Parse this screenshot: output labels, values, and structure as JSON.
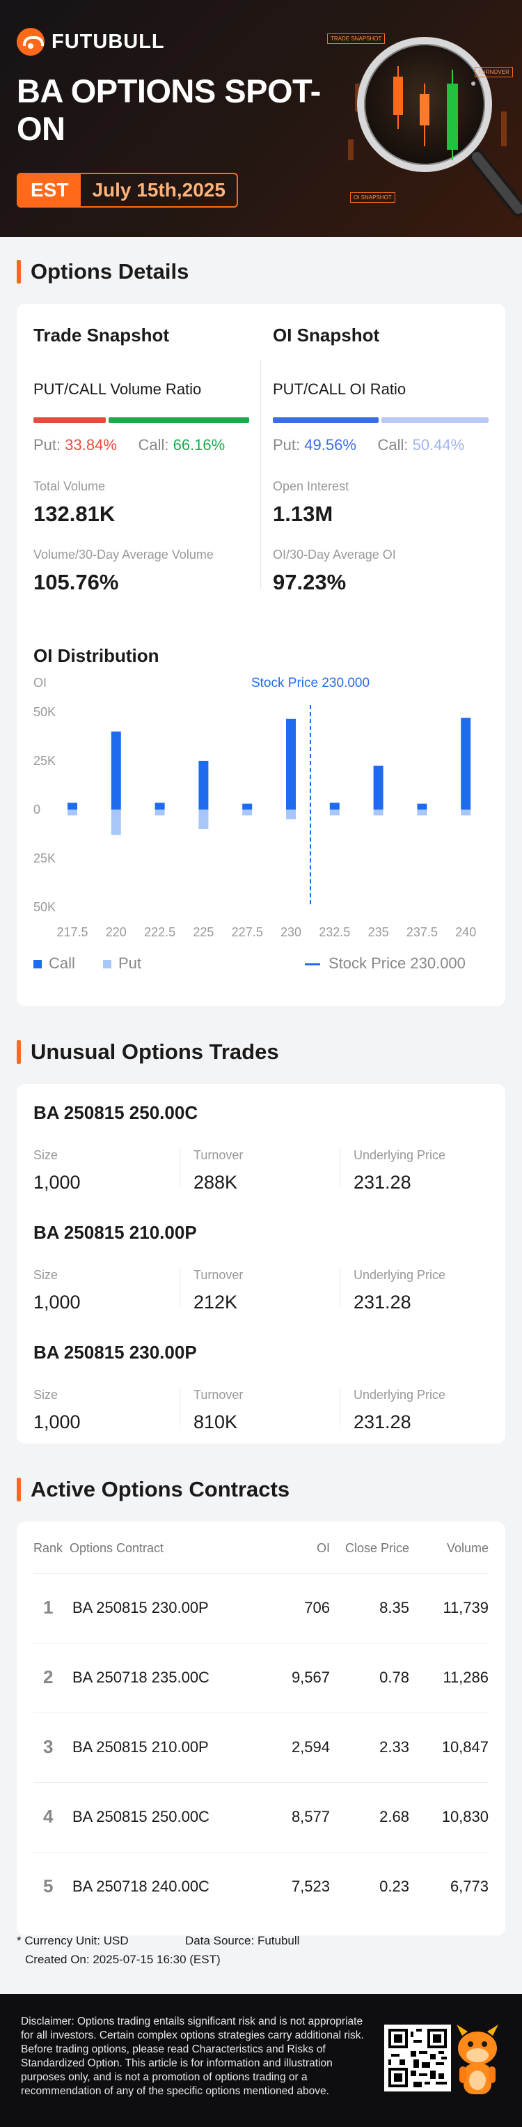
{
  "header": {
    "logo_text": "FUTUBULL",
    "title": "BA OPTIONS SPOT-ON",
    "timezone": "EST",
    "date": "July 15th,2025",
    "deco_labels": [
      "TRADE SNAPSHOT",
      "TURNOVER",
      "OI SNAPSHOT"
    ]
  },
  "options_details": {
    "section_title": "Options Details",
    "trade": {
      "heading": "Trade Snapshot",
      "ratio_label": "PUT/CALL Volume Ratio",
      "put_label": "Put:",
      "put_value": "33.84%",
      "call_label": "Call:",
      "call_value": "66.16%",
      "put_pct": 33.84,
      "call_pct": 66.16,
      "total_volume_label": "Total Volume",
      "total_volume": "132.81K",
      "avg_label": "Volume/30-Day Average Volume",
      "avg_value": "105.76%"
    },
    "oi": {
      "heading": "OI Snapshot",
      "ratio_label": "PUT/CALL OI Ratio",
      "put_label": "Put:",
      "put_value": "49.56%",
      "call_label": "Call:",
      "call_value": "50.44%",
      "put_pct": 49.56,
      "call_pct": 50.44,
      "open_interest_label": "Open Interest",
      "open_interest": "1.13M",
      "avg_label": "OI/30-Day Average OI",
      "avg_value": "97.23%"
    },
    "colors": {
      "put_red": "#e84b3c",
      "call_green": "#1aaa4a",
      "oi_put_blue": "#3a6de8",
      "oi_call_light": "#b8c9f5"
    }
  },
  "chart_data": {
    "type": "bar",
    "title": "OI Distribution",
    "ylabel": "OI",
    "categories": [
      "217.5",
      "220",
      "222.5",
      "225",
      "227.5",
      "230",
      "232.5",
      "235",
      "237.5",
      "240"
    ],
    "y_ticks": [
      "50K",
      "25K",
      "0",
      "25K",
      "50K"
    ],
    "ylim": [
      -50000,
      50000
    ],
    "series": [
      {
        "name": "Call",
        "color": "#1f6bf0",
        "values": [
          3500,
          40000,
          3500,
          25000,
          3000,
          46500,
          3500,
          22500,
          3000,
          47000
        ]
      },
      {
        "name": "Put",
        "color": "#a9c6f8",
        "values": [
          -3000,
          -13000,
          -3000,
          -10000,
          -3000,
          -5000,
          -3000,
          -3000,
          -3000,
          -3000
        ]
      }
    ],
    "stock_price": {
      "name": "Stock Price 230.000",
      "label": "Stock Price 230.000",
      "value": 230.0,
      "color": "#1f6bf0"
    },
    "legend": "bottom"
  },
  "unusual": {
    "section_title": "Unusual Options Trades",
    "size_label": "Size",
    "turnover_label": "Turnover",
    "underlying_label": "Underlying Price",
    "trades": [
      {
        "contract": "BA 250815 250.00C",
        "size": "1,000",
        "turnover": "288K",
        "underlying": "231.28"
      },
      {
        "contract": "BA 250815 210.00P",
        "size": "1,000",
        "turnover": "212K",
        "underlying": "231.28"
      },
      {
        "contract": "BA 250815 230.00P",
        "size": "1,000",
        "turnover": "810K",
        "underlying": "231.28"
      }
    ]
  },
  "active": {
    "section_title": "Active Options Contracts",
    "headers": {
      "rank": "Rank",
      "contract": "Options Contract",
      "oi": "OI",
      "close": "Close Price",
      "volume": "Volume"
    },
    "rows": [
      {
        "rank": "1",
        "contract": "BA 250815 230.00P",
        "oi": "706",
        "close": "8.35",
        "volume": "11,739"
      },
      {
        "rank": "2",
        "contract": "BA 250718 235.00C",
        "oi": "9,567",
        "close": "0.78",
        "volume": "11,286"
      },
      {
        "rank": "3",
        "contract": "BA 250815 210.00P",
        "oi": "2,594",
        "close": "2.33",
        "volume": "10,847"
      },
      {
        "rank": "4",
        "contract": "BA 250815 250.00C",
        "oi": "8,577",
        "close": "2.68",
        "volume": "10,830"
      },
      {
        "rank": "5",
        "contract": "BA 250718 240.00C",
        "oi": "7,523",
        "close": "0.23",
        "volume": "6,773"
      }
    ]
  },
  "footer": {
    "currency": "* Currency Unit: USD",
    "source": "Data Source: Futubull",
    "created": "Created On: 2025-07-15 16:30 (EST)",
    "disclaimer": "Disclaimer: Options trading entails significant risk and is not appropriate for all investors. Certain complex options strategies carry additional risk. Before trading options, please read Characteristics and Risks of Standardized Option. This article is for information and illustration purposes only, and is not a promotion of options trading or a recommendation of any of the specific options mentioned above."
  }
}
